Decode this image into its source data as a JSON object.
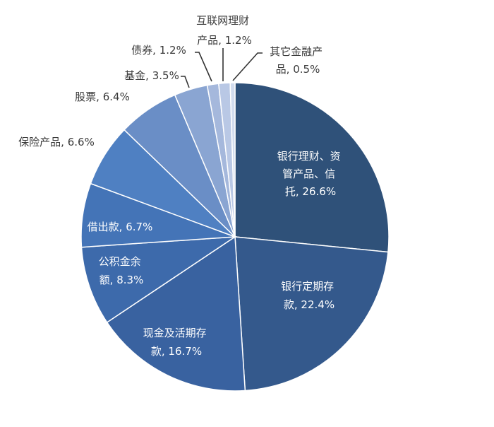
{
  "chart_data": {
    "type": "pie",
    "start": "top",
    "direction": "clockwise",
    "legend": "none",
    "slices": [
      {
        "label_lines": [
          "银行理财、资",
          "管产品、信",
          "托, 26.6%"
        ],
        "name": "银行理财、资管产品、信托",
        "value": 26.6,
        "color": "#2f5179"
      },
      {
        "label_lines": [
          "银行定期存",
          "款, 22.4%"
        ],
        "name": "银行定期存款",
        "value": 22.4,
        "color": "#34598c"
      },
      {
        "label_lines": [
          "现金及活期存",
          "款, 16.7%"
        ],
        "name": "现金及活期存款",
        "value": 16.7,
        "color": "#3962a0"
      },
      {
        "label_lines": [
          "公积金余",
          "额, 8.3%"
        ],
        "name": "公积金余额",
        "value": 8.3,
        "color": "#3d6aab"
      },
      {
        "label_lines": [
          "借出款, 6.7%"
        ],
        "name": "借出款",
        "value": 6.7,
        "color": "#4474b7"
      },
      {
        "label_lines": [
          "保险产品, 6.6%"
        ],
        "name": "保险产品",
        "value": 6.6,
        "color": "#4f80c2"
      },
      {
        "label_lines": [
          "股票, 6.4%"
        ],
        "name": "股票",
        "value": 6.4,
        "color": "#6a8ec6"
      },
      {
        "label_lines": [
          "基金, 3.5%"
        ],
        "name": "基金",
        "value": 3.5,
        "color": "#8aa5d2"
      },
      {
        "label_lines": [
          "债券, 1.2%"
        ],
        "name": "债券",
        "value": 1.2,
        "color": "#a5b8dc"
      },
      {
        "label_lines": [
          "互联网理财",
          "产品, 1.2%"
        ],
        "name": "互联网理财产品",
        "value": 1.2,
        "color": "#b9c8e5"
      },
      {
        "label_lines": [
          "其它金融产",
          "品, 0.5%"
        ],
        "name": "其它金融产品",
        "value": 0.5,
        "color": "#d2dcee"
      }
    ]
  }
}
